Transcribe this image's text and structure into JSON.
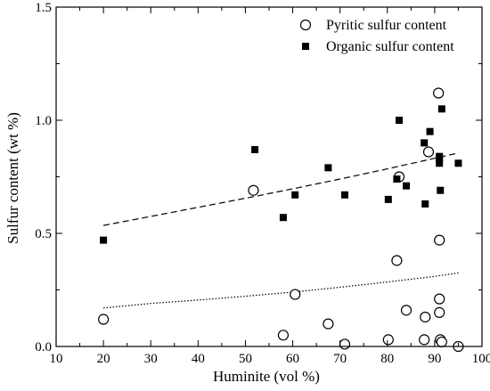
{
  "chart_data": {
    "type": "scatter",
    "title": "",
    "xlabel": "Huminite (vol %)",
    "ylabel": "Sulfur content (wt %)",
    "xlim": [
      10,
      100
    ],
    "ylim": [
      0,
      1.5
    ],
    "xticks": [
      10,
      20,
      30,
      40,
      50,
      60,
      70,
      80,
      90,
      100
    ],
    "xtick_labels": [
      "10",
      "20",
      "30",
      "40",
      "50",
      "60",
      "70",
      "80",
      "90",
      "100"
    ],
    "yticks": [
      0,
      0.5,
      1.0,
      1.5
    ],
    "ytick_labels": [
      "0.0",
      "0.5",
      "1.0",
      "1.5"
    ],
    "grid": false,
    "legend_position": "top-right",
    "series": [
      {
        "name": "Pyritic sulfur content",
        "marker": "open-circle",
        "x": [
          20,
          51.7,
          58,
          60.5,
          67.5,
          71,
          80.2,
          82,
          82.5,
          84,
          87.8,
          88,
          88.7,
          90.8,
          91,
          91,
          91,
          91.2,
          91.5,
          95
        ],
        "y": [
          0.12,
          0.69,
          0.05,
          0.23,
          0.1,
          0.01,
          0.03,
          0.38,
          0.75,
          0.16,
          0.03,
          0.13,
          0.86,
          1.12,
          0.47,
          0.21,
          0.15,
          0.03,
          0.02,
          0.0
        ]
      },
      {
        "name": "Organic sulfur content",
        "marker": "filled-square",
        "x": [
          20,
          52,
          58,
          60.5,
          67.5,
          71,
          80.2,
          82,
          82.5,
          84,
          87.8,
          88,
          89,
          91,
          91,
          91,
          91.2,
          91.5,
          95
        ],
        "y": [
          0.47,
          0.87,
          0.57,
          0.67,
          0.79,
          0.67,
          0.65,
          0.74,
          1.0,
          0.71,
          0.9,
          0.63,
          0.95,
          0.84,
          0.83,
          0.81,
          0.69,
          1.05,
          0.81
        ]
      }
    ],
    "trendlines": [
      {
        "series": "Organic sulfur content",
        "style": "dashed",
        "x": [
          20,
          30,
          40,
          50,
          60,
          70,
          80,
          90,
          95
        ],
        "y": [
          0.535,
          0.575,
          0.615,
          0.655,
          0.697,
          0.74,
          0.785,
          0.832,
          0.855
        ]
      },
      {
        "series": "Pyritic sulfur content",
        "style": "dotted",
        "x": [
          20,
          30,
          40,
          50,
          60,
          70,
          80,
          90,
          95
        ],
        "y": [
          0.17,
          0.19,
          0.205,
          0.222,
          0.24,
          0.262,
          0.285,
          0.31,
          0.325
        ]
      }
    ]
  }
}
